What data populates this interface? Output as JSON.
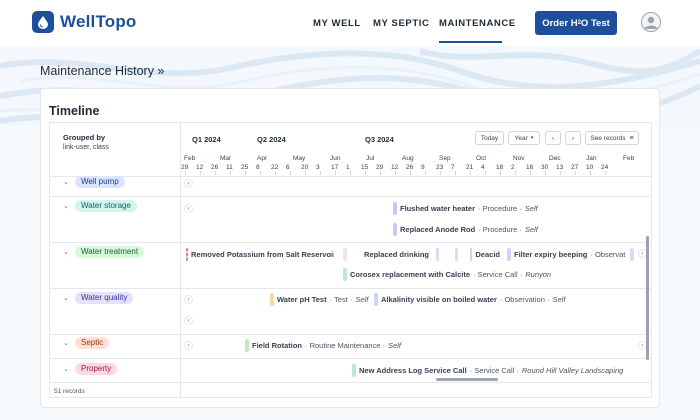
{
  "app": {
    "brand": "WellTopo"
  },
  "nav": {
    "items": [
      {
        "label": "MY WELL",
        "active": false
      },
      {
        "label": "MY SEPTIC",
        "active": false
      },
      {
        "label": "MAINTENANCE",
        "active": true
      }
    ],
    "order_button": {
      "prefix": "Order H",
      "sub": "2",
      "suffix": "O Test"
    }
  },
  "page": {
    "title": "Maintenance History »"
  },
  "timeline": {
    "title": "Timeline",
    "grouped_by_title": "Grouped by",
    "grouped_by_value": "link-user, class",
    "record_count": "51 records",
    "quarters": [
      "Q1 2024",
      "Q2 2024",
      "Q3 2024"
    ],
    "controls": {
      "today": "Today",
      "range": "Year",
      "prev": "‹",
      "next": "›",
      "see_records": "See records"
    },
    "months": [
      "Feb",
      "Mar",
      "Apr",
      "May",
      "Jun",
      "Jul",
      "Aug",
      "Sep",
      "Oct",
      "Nov",
      "Dec",
      "Jan",
      "Feb"
    ],
    "days": [
      "29",
      "12",
      "26",
      "11",
      "25",
      "8",
      "22",
      "6",
      "20",
      "3",
      "17",
      "1",
      "15",
      "29",
      "12",
      "26",
      "9",
      "23",
      "7",
      "21",
      "4",
      "18",
      "2",
      "16",
      "30",
      "13",
      "27",
      "10",
      "24"
    ],
    "groups": [
      {
        "label": "Well pump",
        "color": "#dbe4ff",
        "text_color": "#1f3a8a"
      },
      {
        "label": "Water storage",
        "color": "#d1f5ee",
        "text_color": "#115e59"
      },
      {
        "label": "Water treatment",
        "color": "#d9f7d9",
        "text_color": "#166534"
      },
      {
        "label": "Water quality",
        "color": "#e4e1fb",
        "text_color": "#3730a3"
      },
      {
        "label": "Septic",
        "color": "#fde0d2",
        "text_color": "#9a3412"
      },
      {
        "label": "Property",
        "color": "#fcd9e4",
        "text_color": "#9d174d"
      }
    ],
    "events": {
      "flushed": {
        "title": "Flushed water heater",
        "type": "· Procedure ·",
        "who": "Self",
        "color": "#c7c8f2"
      },
      "anode": {
        "title": "Replaced Anode Rod",
        "type": "· Procedure ·",
        "who": "Self",
        "color": "#c7c8f2"
      },
      "potassium": {
        "title": "Removed Potassium from Salt Reservoir",
        "color": "#f6c9d8"
      },
      "replaced_drinking": {
        "title": "Replaced drinking",
        "color": "#bfe8c4"
      },
      "deacid": {
        "title": "Deacid",
        "color": "#c7d7f5"
      },
      "filter": {
        "title": "Filter expiry beeping",
        "type": "· Observat",
        "color": "#c7d7f5"
      },
      "corosex": {
        "title": "Corosex replacement with Calcite",
        "type": "· Service Call ·",
        "who": "Runyon",
        "color": "#bde9d9"
      },
      "ph": {
        "title": "Water pH Test",
        "type": "· Test ·",
        "who": "Self",
        "color": "#f6d9a8"
      },
      "alkalinity": {
        "title": "Alkalinity visible on boiled water",
        "type": "· Observation ·",
        "who": "Self",
        "color": "#c7d7f5"
      },
      "field": {
        "title": "Field Rotation",
        "type": "· Routine Maintenance ·",
        "who": "Self",
        "color": "#bfe8c4"
      },
      "address": {
        "title": "New Address Log Service Call",
        "type": "· Service Call ·",
        "who": "Round Hill Valley Landscaping",
        "color": "#b9e6dd"
      }
    }
  }
}
